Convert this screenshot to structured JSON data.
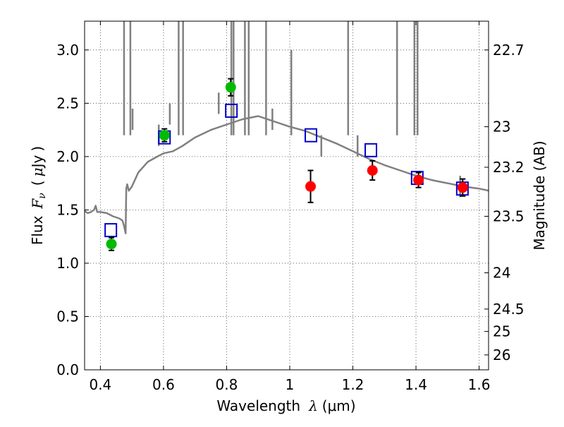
{
  "chart_data": {
    "type": "scatter",
    "xlabel_text": "Wavelength",
    "xlabel_symbol": "λ",
    "xlabel_unit": "(μm)",
    "ylabel_text": "Flux",
    "ylabel_symbol": "F",
    "ylabel_subscript": "ν",
    "ylabel_unit_open": "(",
    "ylabel_unit_mu": "μ",
    "ylabel_unit_rest": "Jy",
    "ylabel_unit_close": ")",
    "y2label": "Magnitude (AB)",
    "xlim": [
      0.35,
      1.63
    ],
    "ylim": [
      0.0,
      3.27
    ],
    "xticks": [
      0.4,
      0.6,
      0.8,
      1.0,
      1.2,
      1.4,
      1.6
    ],
    "xtick_labels": [
      "0.4",
      "0.6",
      "0.8",
      "1",
      "1.2",
      "1.4",
      "1.6"
    ],
    "yticks": [
      0.0,
      0.5,
      1.0,
      1.5,
      2.0,
      2.5,
      3.0
    ],
    "ytick_labels": [
      "0.0",
      "0.5",
      "1.0",
      "1.5",
      "2.0",
      "2.5",
      "3.0"
    ],
    "y2ticks": [
      {
        "label": "22.7",
        "flux": 3.0
      },
      {
        "label": "23",
        "flux": 2.28
      },
      {
        "label": "23.2",
        "flux": 1.9
      },
      {
        "label": "23.5",
        "flux": 1.44
      },
      {
        "label": "24",
        "flux": 0.91
      },
      {
        "label": "24.5",
        "flux": 0.57
      },
      {
        "label": "25",
        "flux": 0.36
      },
      {
        "label": "26",
        "flux": 0.14
      }
    ],
    "grid": true,
    "colors": {
      "sed": "#808080",
      "green_points": "#00bb00",
      "red_points": "#ff0000",
      "model_boxes": "#0000cc",
      "errorbars": "#000000"
    },
    "series": [
      {
        "kind": "line",
        "x": [
          0.35,
          0.36,
          0.37,
          0.38,
          0.385,
          0.39,
          0.4,
          0.42,
          0.44,
          0.46,
          0.47,
          0.475,
          0.48,
          0.482,
          0.485,
          0.49,
          0.5,
          0.52,
          0.55,
          0.58,
          0.6,
          0.63,
          0.66,
          0.7,
          0.75,
          0.8,
          0.85,
          0.9,
          0.95,
          1.0,
          1.05,
          1.1,
          1.15,
          1.2,
          1.25,
          1.3,
          1.35,
          1.4,
          1.45,
          1.5,
          1.55,
          1.6,
          1.63
        ],
        "y": [
          1.49,
          1.47,
          1.48,
          1.5,
          1.54,
          1.48,
          1.48,
          1.47,
          1.44,
          1.42,
          1.4,
          1.35,
          1.28,
          1.7,
          1.74,
          1.68,
          1.72,
          1.85,
          1.95,
          2.0,
          2.03,
          2.05,
          2.1,
          2.18,
          2.25,
          2.3,
          2.35,
          2.38,
          2.33,
          2.28,
          2.24,
          2.18,
          2.12,
          2.05,
          1.98,
          1.92,
          1.87,
          1.82,
          1.78,
          1.75,
          1.72,
          1.7,
          1.68
        ]
      },
      {
        "kind": "lines",
        "x": [
          0.475,
          0.495,
          0.502,
          0.585,
          0.62,
          0.648,
          0.662,
          0.775,
          0.815,
          0.822,
          0.858,
          0.87,
          0.925,
          0.945,
          1.005,
          1.1,
          1.185,
          1.215,
          1.34,
          1.395,
          1.405,
          1.54
        ],
        "y": [
          3.27,
          3.27,
          2.45,
          2.3,
          2.5,
          3.27,
          3.27,
          2.6,
          3.27,
          3.27,
          3.27,
          3.27,
          3.27,
          2.45,
          3.0,
          2.2,
          3.27,
          2.2,
          3.27,
          3.27,
          3.27,
          1.82
        ]
      },
      {
        "kind": "points",
        "x": [
          0.435,
          0.603,
          0.813
        ],
        "y": [
          1.18,
          2.2,
          2.65
        ],
        "yerr": [
          0.06,
          0.06,
          0.08
        ]
      },
      {
        "kind": "points",
        "x": [
          1.066,
          1.262,
          1.408,
          1.548
        ],
        "y": [
          1.72,
          1.87,
          1.78,
          1.71
        ],
        "yerr": [
          0.15,
          0.09,
          0.07,
          0.08
        ]
      },
      {
        "kind": "boxes",
        "x": [
          0.433,
          0.603,
          0.815,
          1.067,
          1.257,
          1.404,
          1.547
        ],
        "y": [
          1.31,
          2.18,
          2.43,
          2.2,
          2.06,
          1.8,
          1.7
        ]
      }
    ]
  }
}
